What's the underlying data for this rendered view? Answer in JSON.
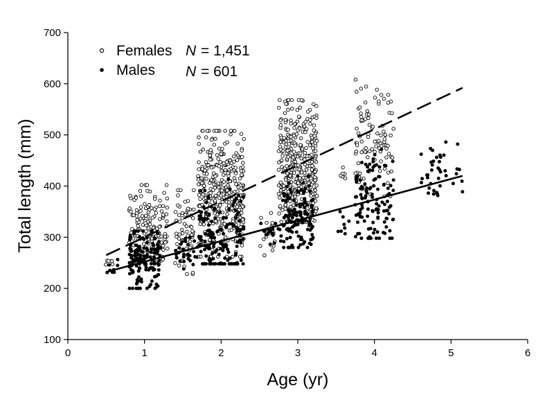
{
  "chart_data": {
    "type": "scatter",
    "title": "",
    "xlabel": "Age (yr)",
    "ylabel": "Total length (mm)",
    "xlim": [
      0,
      6
    ],
    "ylim": [
      100,
      700
    ],
    "xticks": [
      "0",
      "1",
      "2",
      "3",
      "4",
      "5",
      "6"
    ],
    "yticks": [
      "100",
      "200",
      "300",
      "400",
      "500",
      "600",
      "700"
    ],
    "grid": false,
    "legend": {
      "placement": "top-left",
      "entries": [
        {
          "name": "Females",
          "n_label": "N",
          "n_value": "= 1,451",
          "marker": "open-circle"
        },
        {
          "name": "Males",
          "n_label": "N",
          "n_value": "= 601",
          "marker": "filled-circle"
        }
      ]
    },
    "series": [
      {
        "name": "Females",
        "marker": "open-circle",
        "fit_line": {
          "style": "dashed",
          "x": [
            0.5,
            5.15
          ],
          "y": [
            265,
            592
          ]
        },
        "clusters": [
          {
            "x_range": [
              0.48,
              0.62
            ],
            "y_mean": 248,
            "y_range": [
              238,
              258
            ],
            "count": 6
          },
          {
            "x_range": [
              0.8,
              1.3
            ],
            "y_mean": 320,
            "y_range": [
              250,
              402
            ],
            "count": 150
          },
          {
            "x_range": [
              1.4,
              1.65
            ],
            "y_mean": 320,
            "y_range": [
              228,
              392
            ],
            "count": 60
          },
          {
            "x_range": [
              1.7,
              2.3
            ],
            "y_mean": 385,
            "y_range": [
              262,
              508
            ],
            "count": 380
          },
          {
            "x_range": [
              2.5,
              2.7
            ],
            "y_mean": 320,
            "y_range": [
              258,
              370
            ],
            "count": 20
          },
          {
            "x_range": [
              2.75,
              3.25
            ],
            "y_mean": 440,
            "y_range": [
              330,
              568
            ],
            "count": 380
          },
          {
            "x_range": [
              3.5,
              3.62
            ],
            "y_mean": 430,
            "y_range": [
              395,
              462
            ],
            "count": 6
          },
          {
            "x_range": [
              3.75,
              4.25
            ],
            "y_mean": 490,
            "y_range": [
              380,
              608
            ],
            "count": 100
          }
        ]
      },
      {
        "name": "Males",
        "marker": "filled-circle",
        "fit_line": {
          "style": "solid",
          "x": [
            0.5,
            5.15
          ],
          "y": [
            232,
            420
          ]
        },
        "clusters": [
          {
            "x_range": [
              0.5,
              0.7
            ],
            "y_mean": 245,
            "y_range": [
              228,
              262
            ],
            "count": 8
          },
          {
            "x_range": [
              0.8,
              1.2
            ],
            "y_mean": 255,
            "y_range": [
              200,
              312
            ],
            "count": 150
          },
          {
            "x_range": [
              1.4,
              1.7
            ],
            "y_mean": 265,
            "y_range": [
              228,
              300
            ],
            "count": 30
          },
          {
            "x_range": [
              1.7,
              2.3
            ],
            "y_mean": 305,
            "y_range": [
              248,
              420
            ],
            "count": 160
          },
          {
            "x_range": [
              2.5,
              2.8
            ],
            "y_mean": 305,
            "y_range": [
              278,
              340
            ],
            "count": 20
          },
          {
            "x_range": [
              2.8,
              3.2
            ],
            "y_mean": 335,
            "y_range": [
              280,
              420
            ],
            "count": 130
          },
          {
            "x_range": [
              3.5,
              3.7
            ],
            "y_mean": 320,
            "y_range": [
              290,
              350
            ],
            "count": 8
          },
          {
            "x_range": [
              3.75,
              4.25
            ],
            "y_mean": 370,
            "y_range": [
              298,
              472
            ],
            "count": 120
          },
          {
            "x_range": [
              4.6,
              5.15
            ],
            "y_mean": 425,
            "y_range": [
              355,
              486
            ],
            "count": 40
          }
        ]
      }
    ]
  }
}
